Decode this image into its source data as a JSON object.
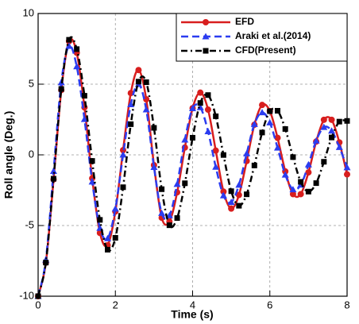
{
  "chart_data": {
    "type": "line",
    "xlabel": "Time (s)",
    "ylabel": "Roll angle (Deg.)",
    "x": [
      0,
      0.2,
      0.4,
      0.6,
      0.8,
      1.0,
      1.2,
      1.4,
      1.6,
      1.8,
      2.0,
      2.2,
      2.4,
      2.6,
      2.8,
      3.0,
      3.2,
      3.4,
      3.6,
      3.8,
      4.0,
      4.2,
      4.4,
      4.6,
      4.8,
      5.0,
      5.2,
      5.4,
      5.6,
      5.8,
      6.0,
      6.2,
      6.4,
      6.6,
      6.8,
      7.0,
      7.2,
      7.4,
      7.6,
      7.8,
      8.0
    ],
    "series": [
      {
        "name": "EFD",
        "color": "#d81e1e",
        "linestyle": "solid",
        "marker": "circle",
        "values": [
          -10,
          -7.63,
          -1.74,
          4.58,
          8.04,
          7.22,
          3.36,
          -1.66,
          -5.52,
          -6.39,
          -4.01,
          0.33,
          4.37,
          6.0,
          3.93,
          -0.73,
          -4.45,
          -4.72,
          -2.65,
          0.52,
          3.3,
          4.4,
          3.2,
          0.3,
          -2.6,
          -3.8,
          -2.84,
          -0.44,
          2.13,
          3.53,
          3.1,
          1.2,
          -1.17,
          -2.78,
          -2.78,
          -1.24,
          0.94,
          2.48,
          2.48,
          0.88,
          -1.38
        ]
      },
      {
        "name": "Araki et al.(2014)",
        "color": "#2b3cf0",
        "linestyle": "dashed",
        "marker": "triangle",
        "values": [
          -10,
          -7.42,
          -1.15,
          5.12,
          7.7,
          6.25,
          2.52,
          -1.9,
          -5.18,
          -5.91,
          -3.81,
          0.01,
          3.57,
          5.0,
          3.2,
          -0.87,
          -4.12,
          -4.29,
          -2.07,
          1.07,
          3.29,
          3.36,
          1.66,
          -0.86,
          -2.88,
          -3.35,
          -2.13,
          0.09,
          2.17,
          3.0,
          2.28,
          0.5,
          -1.41,
          -2.45,
          -2.12,
          -0.69,
          1.0,
          1.96,
          1.7,
          0.54,
          -0.89
        ]
      },
      {
        "name": "CFD(Present)",
        "color": "#000000",
        "linestyle": "dashdot",
        "marker": "square",
        "values": [
          -10,
          -7.62,
          -1.69,
          4.66,
          8.14,
          7.48,
          4.18,
          -0.43,
          -4.6,
          -6.71,
          -5.87,
          -2.29,
          2.17,
          5.18,
          5.14,
          1.91,
          -2.43,
          -4.98,
          -4.47,
          -2.01,
          1.21,
          3.67,
          4.23,
          2.73,
          -0.01,
          -2.57,
          -3.6,
          -2.79,
          -0.75,
          1.58,
          3.09,
          3.12,
          1.83,
          -0.16,
          -1.91,
          -2.6,
          -2.0,
          -0.49,
          1.23,
          2.35,
          2.4
        ]
      }
    ],
    "xlim": [
      0,
      8
    ],
    "ylim": [
      -10,
      10
    ],
    "xticks": [
      0,
      2,
      4,
      6,
      8
    ],
    "yticks": [
      -10,
      -5,
      0,
      5,
      10
    ],
    "grid": true,
    "legend": "upper right"
  }
}
